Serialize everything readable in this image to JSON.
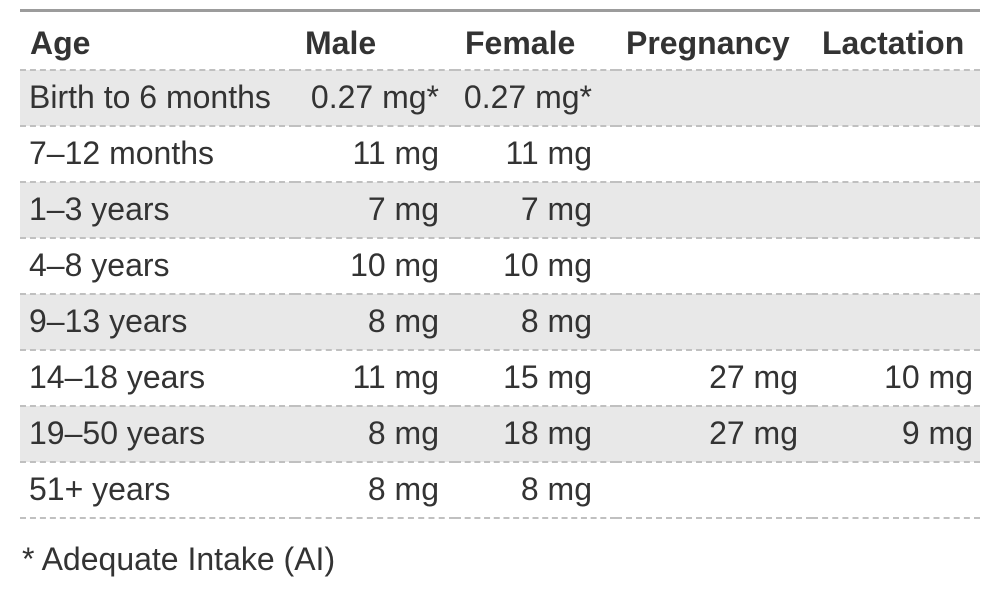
{
  "colors": {
    "text": "#333333",
    "row_stripe": "#e8e8e8",
    "top_border": "#9c9c9c",
    "dashed_divider": "#c0c0c0",
    "background": "#ffffff"
  },
  "table": {
    "columns": [
      {
        "label": "Age"
      },
      {
        "label": "Male"
      },
      {
        "label": "Female"
      },
      {
        "label": "Pregnancy"
      },
      {
        "label": "Lactation"
      }
    ],
    "rows": [
      {
        "age": "Birth to 6 months",
        "male": "0.27 mg*",
        "female": "0.27 mg*",
        "pregnancy": "",
        "lactation": ""
      },
      {
        "age": "7–12 months",
        "male": "11 mg",
        "female": "11 mg",
        "pregnancy": "",
        "lactation": ""
      },
      {
        "age": "1–3 years",
        "male": "7 mg",
        "female": "7 mg",
        "pregnancy": "",
        "lactation": ""
      },
      {
        "age": "4–8 years",
        "male": "10 mg",
        "female": "10 mg",
        "pregnancy": "",
        "lactation": ""
      },
      {
        "age": "9–13 years",
        "male": "8 mg",
        "female": "8 mg",
        "pregnancy": "",
        "lactation": ""
      },
      {
        "age": "14–18 years",
        "male": "11 mg",
        "female": "15 mg",
        "pregnancy": "27 mg",
        "lactation": "10 mg"
      },
      {
        "age": "19–50 years",
        "male": "8 mg",
        "female": "18 mg",
        "pregnancy": "27 mg",
        "lactation": "9 mg"
      },
      {
        "age": "51+ years",
        "male": "8 mg",
        "female": "8 mg",
        "pregnancy": "",
        "lactation": ""
      }
    ],
    "footnote": "* Adequate Intake (AI)"
  }
}
